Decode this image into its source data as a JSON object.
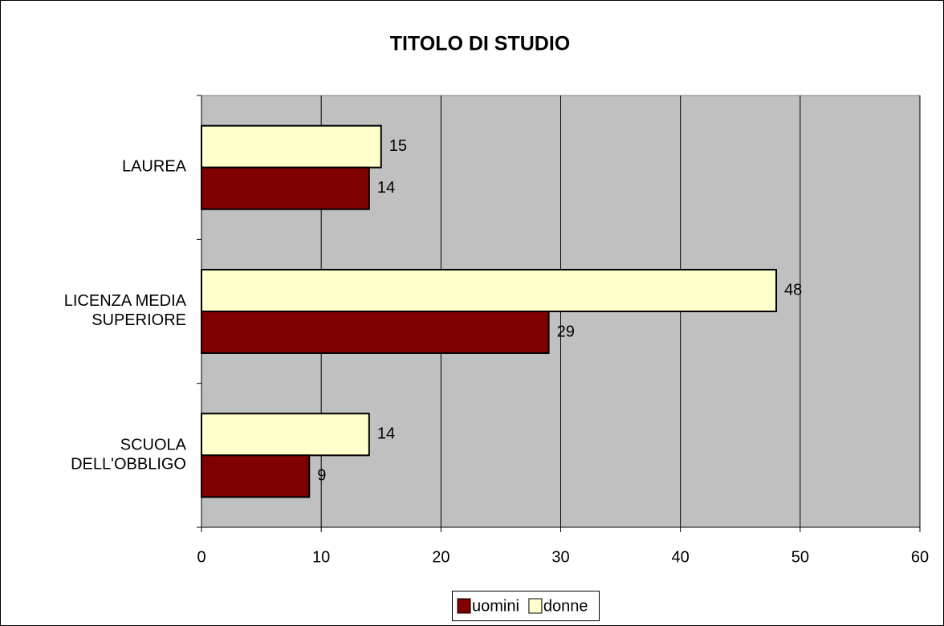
{
  "chart_data": {
    "type": "bar",
    "orientation": "horizontal",
    "title": "TITOLO DI STUDIO",
    "categories": [
      "LAUREA",
      "LICENZA MEDIA\nSUPERIORE",
      "SCUOLA\nDELL'OBBLIGO"
    ],
    "series": [
      {
        "name": "uomini",
        "color": "#800000",
        "values": [
          14,
          29,
          9
        ]
      },
      {
        "name": "donne",
        "color": "#ffffcc",
        "values": [
          15,
          48,
          14
        ]
      }
    ],
    "xlim": [
      0,
      60
    ],
    "xticks": [
      0,
      10,
      20,
      30,
      40,
      50,
      60
    ],
    "grid": true,
    "legend": "bottom"
  }
}
